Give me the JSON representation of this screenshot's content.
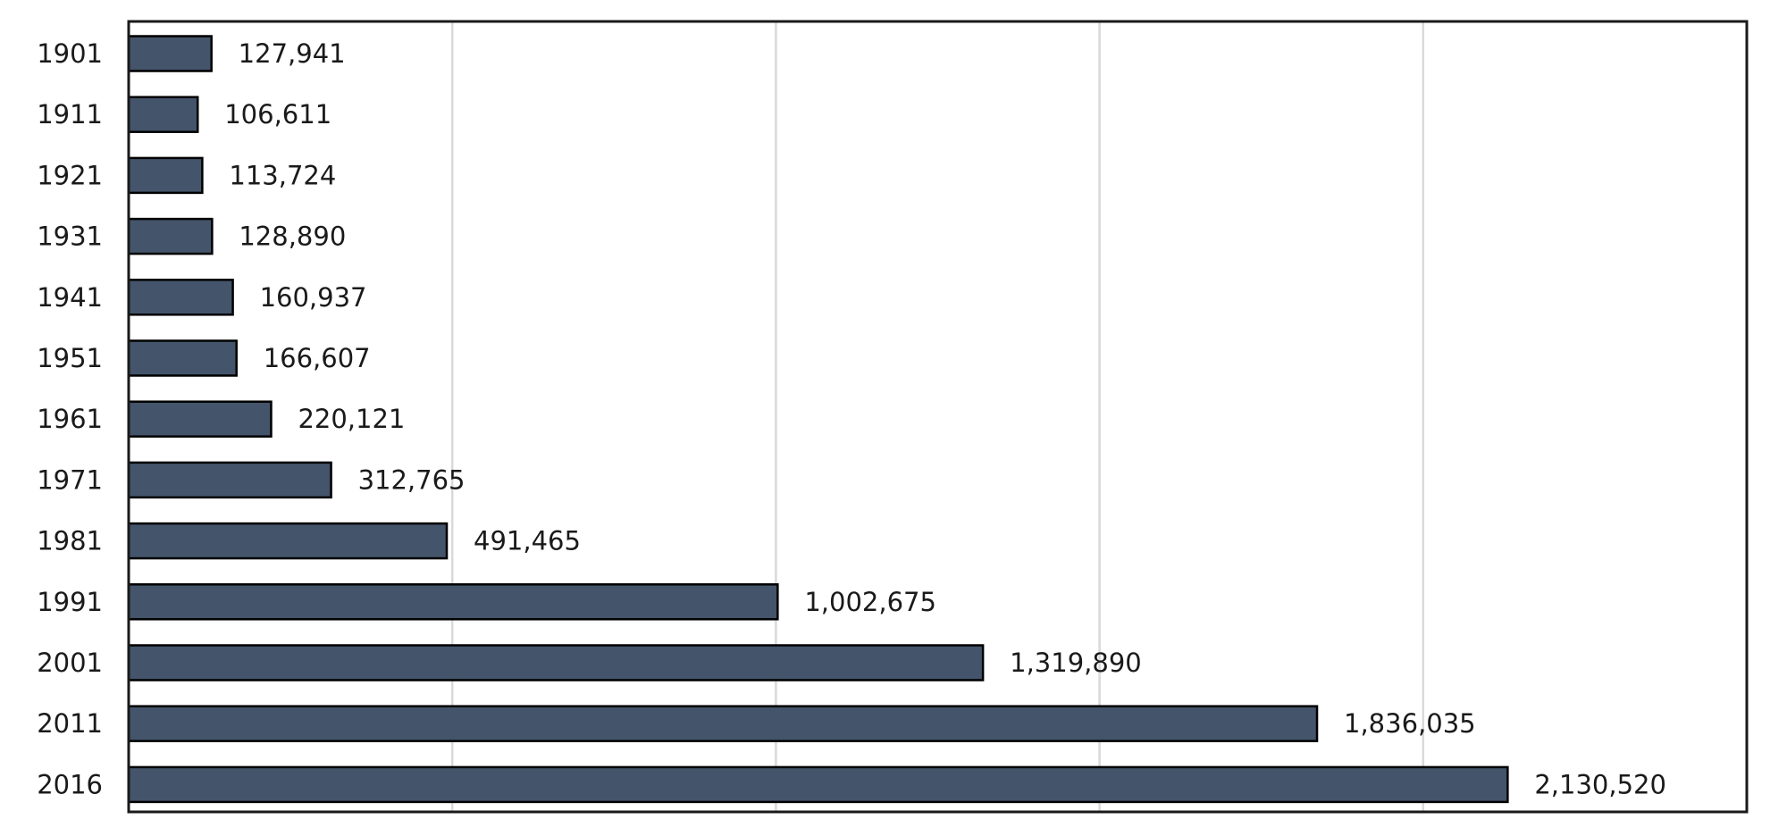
{
  "chart_data": {
    "type": "bar",
    "orientation": "horizontal",
    "title": "",
    "xlabel": "",
    "ylabel": "",
    "categories": [
      "1901",
      "1911",
      "1921",
      "1931",
      "1941",
      "1951",
      "1961",
      "1971",
      "1981",
      "1991",
      "2001",
      "2011",
      "2016"
    ],
    "values": [
      127941,
      106611,
      113724,
      128890,
      160937,
      166607,
      220121,
      312765,
      491465,
      1002675,
      1319890,
      1836035,
      2130520
    ],
    "value_labels": [
      "127,941",
      "106,611",
      "113,724",
      "128,890",
      "160,937",
      "166,607",
      "220,121",
      "312,765",
      "491,465",
      "1,002,675",
      "1,319,890",
      "1,836,035",
      "2,130,520"
    ],
    "xlim": [
      0,
      2500000
    ],
    "grid_values": [
      500000,
      1000000,
      1500000,
      2000000
    ],
    "grid": true,
    "x_tick_labels_visible": false,
    "legend": "none",
    "bar_color": "#44546a",
    "bar_edge_color": "#000000",
    "grid_color": "#d9d9d9"
  }
}
